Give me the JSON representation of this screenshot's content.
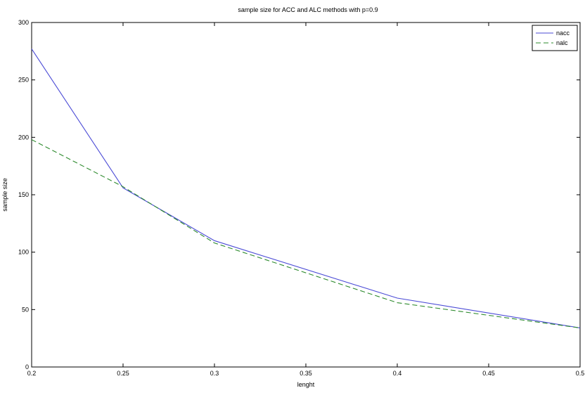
{
  "chart_data": {
    "type": "line",
    "title": "sample size for ACC and ALC methods with p=0.9",
    "xlabel": "lenght",
    "ylabel": "sample size",
    "xlim": [
      0.2,
      0.5
    ],
    "ylim": [
      0,
      300
    ],
    "x_ticks": [
      "0.2",
      "0.25",
      "0.3",
      "0.35",
      "0.4",
      "0.45",
      "0.5"
    ],
    "y_ticks": [
      "0",
      "50",
      "100",
      "150",
      "200",
      "250",
      "300"
    ],
    "grid": false,
    "legend_position": "top-right",
    "series": [
      {
        "name": "nacc",
        "color": "#4b4bd6",
        "dash": "solid",
        "x": [
          0.2,
          0.25,
          0.3,
          0.4,
          0.5
        ],
        "y": [
          277,
          156,
          110,
          60,
          34
        ]
      },
      {
        "name": "nalc",
        "color": "#2e8b2e",
        "dash": "dashed",
        "x": [
          0.2,
          0.25,
          0.3,
          0.4,
          0.5
        ],
        "y": [
          198,
          157,
          108,
          56,
          34
        ]
      }
    ]
  }
}
